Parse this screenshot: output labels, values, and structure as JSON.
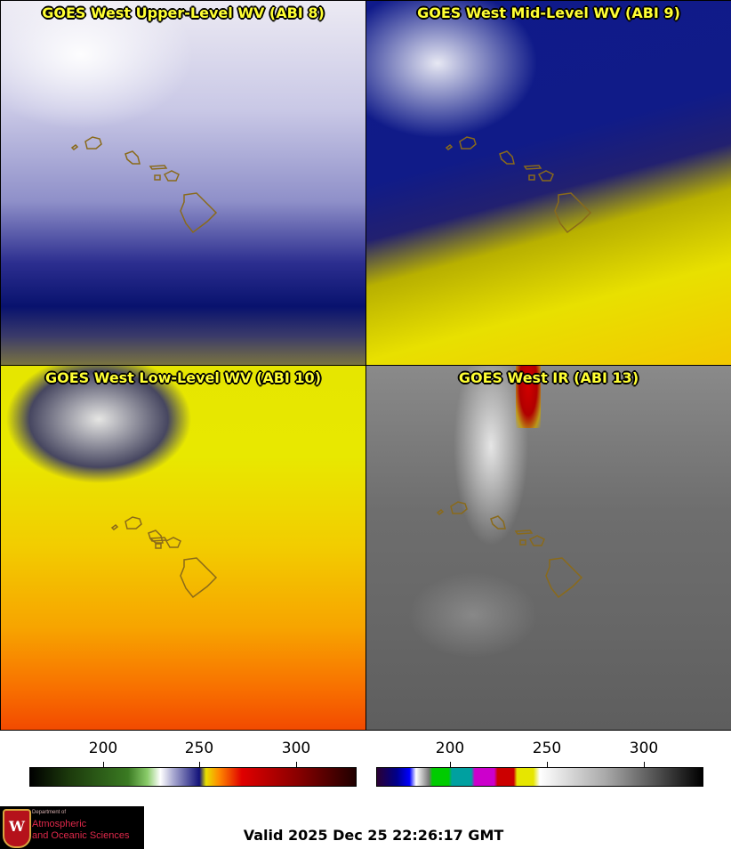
{
  "panels": [
    {
      "title": "GOES West Upper-Level WV (ABI 8)"
    },
    {
      "title": "GOES West Mid-Level WV (ABI 9)"
    },
    {
      "title": "GOES West Low-Level WV (ABI 10)"
    },
    {
      "title": "GOES West IR (ABI 13)"
    }
  ],
  "colorbars": [
    {
      "ticks": [
        "200",
        "250",
        "300"
      ]
    },
    {
      "ticks": [
        "200",
        "250",
        "300"
      ]
    }
  ],
  "logo": {
    "dept": "Department of",
    "line1": "Atmospheric",
    "line2": "and Oceanic Sciences",
    "letter": "W"
  },
  "valid_time": "Valid 2025 Dec 25 22:26:17 GMT",
  "colors": {
    "title_text": "#ffff33",
    "island_outline": "#8a6a1a"
  }
}
